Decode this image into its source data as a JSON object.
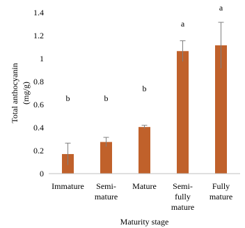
{
  "chart_data": {
    "type": "bar",
    "xlabel": "Maturity stage",
    "ylabel": [
      "Total anthocyanin",
      "(mg/g)"
    ],
    "ylim": [
      0,
      1.4
    ],
    "yticks": [
      "0",
      "0.2",
      "0.4",
      "0.6",
      "0.8",
      "1",
      "1.2",
      "1.4"
    ],
    "categories": [
      [
        "Immature"
      ],
      [
        "Semi-",
        "mature"
      ],
      [
        "Mature"
      ],
      [
        "Semi-",
        "fully",
        "mature"
      ],
      [
        "Fully",
        "mature"
      ]
    ],
    "values": [
      0.17,
      0.275,
      0.405,
      1.065,
      1.115
    ],
    "errors": [
      0.095,
      0.04,
      0.015,
      0.09,
      0.2
    ],
    "significance": [
      "b",
      "b",
      "b",
      "a",
      "a"
    ],
    "grid": false,
    "colors": {
      "bar": "#c0612b",
      "error": "#7f7f7f",
      "axis": "#000000"
    }
  }
}
